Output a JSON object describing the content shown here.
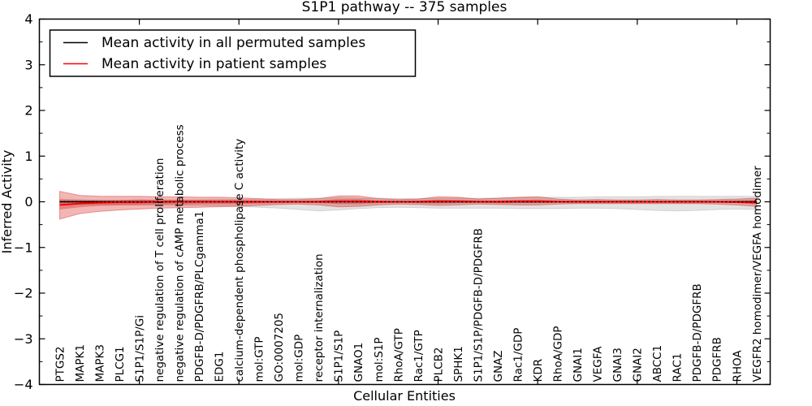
{
  "title": "S1P1 pathway -- 375 samples",
  "legend": {
    "items": [
      {
        "label": "Mean activity in all permuted samples",
        "color": "#000000"
      },
      {
        "label": "Mean activity in patient samples",
        "color": "#ff0000"
      }
    ]
  },
  "chart_data": {
    "type": "line",
    "title": "S1P1 pathway -- 375 samples",
    "xlabel": "Cellular Entities",
    "ylabel": "Inferred Activity",
    "ylim": [
      -4,
      4
    ],
    "yticks": [
      -4,
      -3,
      -2,
      -1,
      0,
      1,
      2,
      3,
      4
    ],
    "y_minor_step": 0.5,
    "x_major_tick_indices": [
      4,
      9,
      14,
      19,
      24,
      29,
      34
    ],
    "grid": false,
    "legend_position": "upper left",
    "zero_line": {
      "style": "dotted",
      "color": "#000000"
    },
    "categories": [
      "PTGS2",
      "MAPK1",
      "MAPK3",
      "PLCG1",
      "S1P1/S1P/Gi",
      "negative regulation of T cell proliferation",
      "negative regulation of cAMP metabolic process",
      "PDGFB-D/PDGFRB/PLCgamma1",
      "EDG1",
      "calcium-dependent phospholipase C activity",
      "mol:GTP",
      "GO:0007205",
      "mol:GDP",
      "receptor internalization",
      "S1P1/S1P",
      "GNAO1",
      "mol:S1P",
      "RhoA/GTP",
      "Rac1/GTP",
      "PLCB2",
      "SPHK1",
      "S1P1/S1P/PDGFB-D/PDGFRB",
      "GNAZ",
      "Rac1/GDP",
      "KDR",
      "RhoA/GDP",
      "GNAI1",
      "VEGFA",
      "GNAI3",
      "GNAI2",
      "ABCC1",
      "RAC1",
      "PDGFB-D/PDGFRB",
      "PDGFRB",
      "RHOA",
      "VEGFR2 homodimer/VEGFA homodimer"
    ],
    "series": [
      {
        "name": "Mean activity in all permuted samples",
        "color": "#000000",
        "line_width": 1.5,
        "values": [
          0,
          0,
          0,
          0,
          0,
          0,
          0,
          0,
          0,
          0,
          0,
          0,
          0,
          0,
          0,
          0,
          0,
          0,
          0,
          0,
          0,
          0,
          0,
          0,
          0,
          0,
          0,
          0,
          0,
          0,
          0,
          0,
          0,
          0,
          0,
          0
        ]
      },
      {
        "name": "Mean activity in patient samples",
        "color": "#ff0000",
        "line_width": 2,
        "values": [
          -0.07,
          -0.04,
          -0.02,
          -0.01,
          -0.01,
          0,
          0,
          0,
          0,
          0,
          0,
          0,
          0,
          0,
          0.01,
          0.01,
          0,
          0,
          0,
          0.01,
          0.01,
          0,
          0,
          0.01,
          0.01,
          0,
          0,
          0,
          0,
          0,
          0,
          0,
          0,
          0,
          -0.01,
          -0.02
        ]
      }
    ],
    "bands": [
      {
        "name": "permuted-sample-range",
        "fill": "rgba(0,0,0,0.11)",
        "edge": "rgba(0,0,0,0.12)",
        "upper": [
          0.03,
          0.03,
          0.03,
          0.03,
          0.04,
          0.04,
          0.04,
          0.04,
          0.05,
          0.05,
          0.06,
          0.07,
          0.08,
          0.08,
          0.09,
          0.08,
          0.08,
          0.07,
          0.07,
          0.08,
          0.08,
          0.08,
          0.08,
          0.09,
          0.1,
          0.1,
          0.1,
          0.11,
          0.11,
          0.11,
          0.12,
          0.12,
          0.12,
          0.12,
          0.12,
          0.12
        ],
        "lower": [
          -0.05,
          -0.05,
          -0.06,
          -0.06,
          -0.07,
          -0.07,
          -0.08,
          -0.08,
          -0.09,
          -0.1,
          -0.12,
          -0.14,
          -0.17,
          -0.2,
          -0.18,
          -0.15,
          -0.13,
          -0.12,
          -0.13,
          -0.14,
          -0.14,
          -0.14,
          -0.14,
          -0.15,
          -0.15,
          -0.15,
          -0.14,
          -0.14,
          -0.15,
          -0.17,
          -0.19,
          -0.2,
          -0.19,
          -0.17,
          -0.16,
          -0.17
        ]
      },
      {
        "name": "patient-outer-band",
        "fill": "rgba(210,30,26,0.32)",
        "edge": "rgba(210,30,26,0.40)",
        "upper": [
          0.23,
          0.14,
          0.12,
          0.12,
          0.12,
          0.11,
          0.11,
          0.1,
          0.1,
          0.09,
          0.07,
          0.05,
          0.05,
          0.07,
          0.13,
          0.13,
          0.07,
          0.05,
          0.06,
          0.11,
          0.1,
          0.06,
          0.08,
          0.1,
          0.11,
          0.06,
          0.04,
          0.05,
          0.04,
          0.04,
          0.05,
          0.04,
          0.04,
          0.05,
          0.06,
          0.08
        ],
        "lower": [
          -0.38,
          -0.26,
          -0.21,
          -0.18,
          -0.16,
          -0.14,
          -0.13,
          -0.12,
          -0.11,
          -0.1,
          -0.08,
          -0.06,
          -0.05,
          -0.07,
          -0.11,
          -0.1,
          -0.07,
          -0.05,
          -0.06,
          -0.08,
          -0.07,
          -0.05,
          -0.06,
          -0.07,
          -0.07,
          -0.05,
          -0.04,
          -0.04,
          -0.04,
          -0.04,
          -0.04,
          -0.04,
          -0.04,
          -0.05,
          -0.07,
          -0.1
        ]
      },
      {
        "name": "patient-inner-band",
        "fill": "rgba(210,30,26,0.34)",
        "edge": "none",
        "upper": [
          0.06,
          0.05,
          0.04,
          0.04,
          0.05,
          0.04,
          0.04,
          0.04,
          0.04,
          0.04,
          0.03,
          0.02,
          0.02,
          0.03,
          0.06,
          0.06,
          0.03,
          0.02,
          0.03,
          0.05,
          0.04,
          0.03,
          0.03,
          0.04,
          0.05,
          0.03,
          0.02,
          0.02,
          0.02,
          0.02,
          0.02,
          0.02,
          0.02,
          0.02,
          0.03,
          0.04
        ],
        "lower": [
          -0.17,
          -0.12,
          -0.09,
          -0.08,
          -0.07,
          -0.06,
          -0.06,
          -0.05,
          -0.05,
          -0.05,
          -0.04,
          -0.03,
          -0.02,
          -0.03,
          -0.05,
          -0.05,
          -0.03,
          -0.02,
          -0.03,
          -0.04,
          -0.03,
          -0.02,
          -0.03,
          -0.03,
          -0.03,
          -0.02,
          -0.02,
          -0.02,
          -0.02,
          -0.02,
          -0.02,
          -0.02,
          -0.02,
          -0.02,
          -0.02,
          -0.05
        ]
      }
    ]
  }
}
